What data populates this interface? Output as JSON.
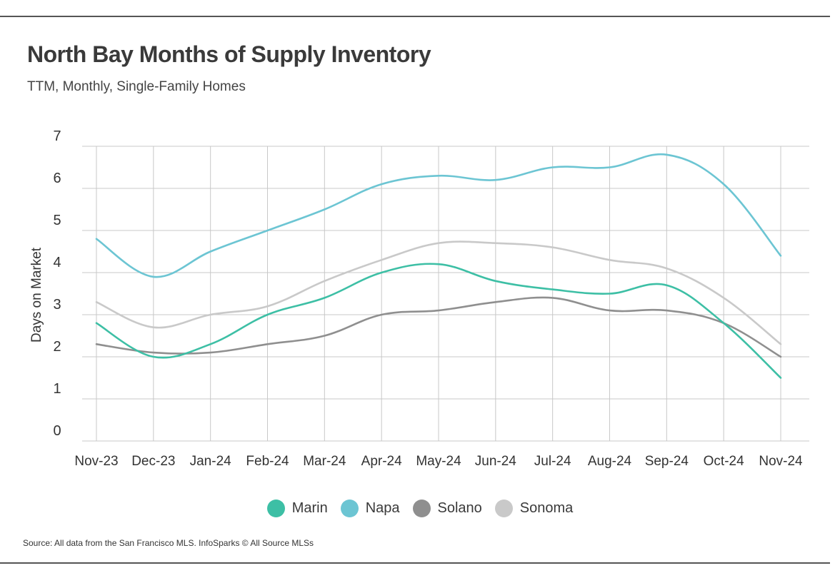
{
  "header": {
    "title": "North Bay Months of Supply Inventory",
    "subtitle": "TTM, Monthly, Single-Family Homes"
  },
  "source": "Source:  All data from the San Francisco MLS. InfoSparks © All Source MLSs",
  "chart_data": {
    "type": "line",
    "title": "North Bay Months of Supply Inventory",
    "subtitle": "TTM, Monthly, Single-Family Homes",
    "xlabel": "",
    "ylabel": "Days on Market",
    "ylim": [
      0,
      7
    ],
    "yticks": [
      "0",
      "1",
      "2",
      "3",
      "4",
      "5",
      "6",
      "7"
    ],
    "grid": true,
    "legend_position": "bottom",
    "categories": [
      "Nov-23",
      "Dec-23",
      "Jan-24",
      "Feb-24",
      "Mar-24",
      "Apr-24",
      "May-24",
      "Jun-24",
      "Jul-24",
      "Aug-24",
      "Sep-24",
      "Oct-24",
      "Nov-24"
    ],
    "series": [
      {
        "name": "Marin",
        "color": "#3dbfa5",
        "values": [
          2.8,
          2.0,
          2.3,
          3.0,
          3.4,
          4.0,
          4.2,
          3.8,
          3.6,
          3.5,
          3.7,
          2.8,
          1.5
        ]
      },
      {
        "name": "Napa",
        "color": "#6cc5d3",
        "values": [
          4.8,
          3.9,
          4.5,
          5.0,
          5.5,
          6.1,
          6.3,
          6.2,
          6.5,
          6.5,
          6.8,
          6.1,
          4.4
        ]
      },
      {
        "name": "Solano",
        "color": "#8f8f8f",
        "values": [
          2.3,
          2.1,
          2.1,
          2.3,
          2.5,
          3.0,
          3.1,
          3.3,
          3.4,
          3.1,
          3.1,
          2.8,
          2.0
        ]
      },
      {
        "name": "Sonoma",
        "color": "#c9c9c9",
        "values": [
          3.3,
          2.7,
          3.0,
          3.2,
          3.8,
          4.3,
          4.7,
          4.7,
          4.6,
          4.3,
          4.1,
          3.4,
          2.3
        ]
      }
    ]
  }
}
